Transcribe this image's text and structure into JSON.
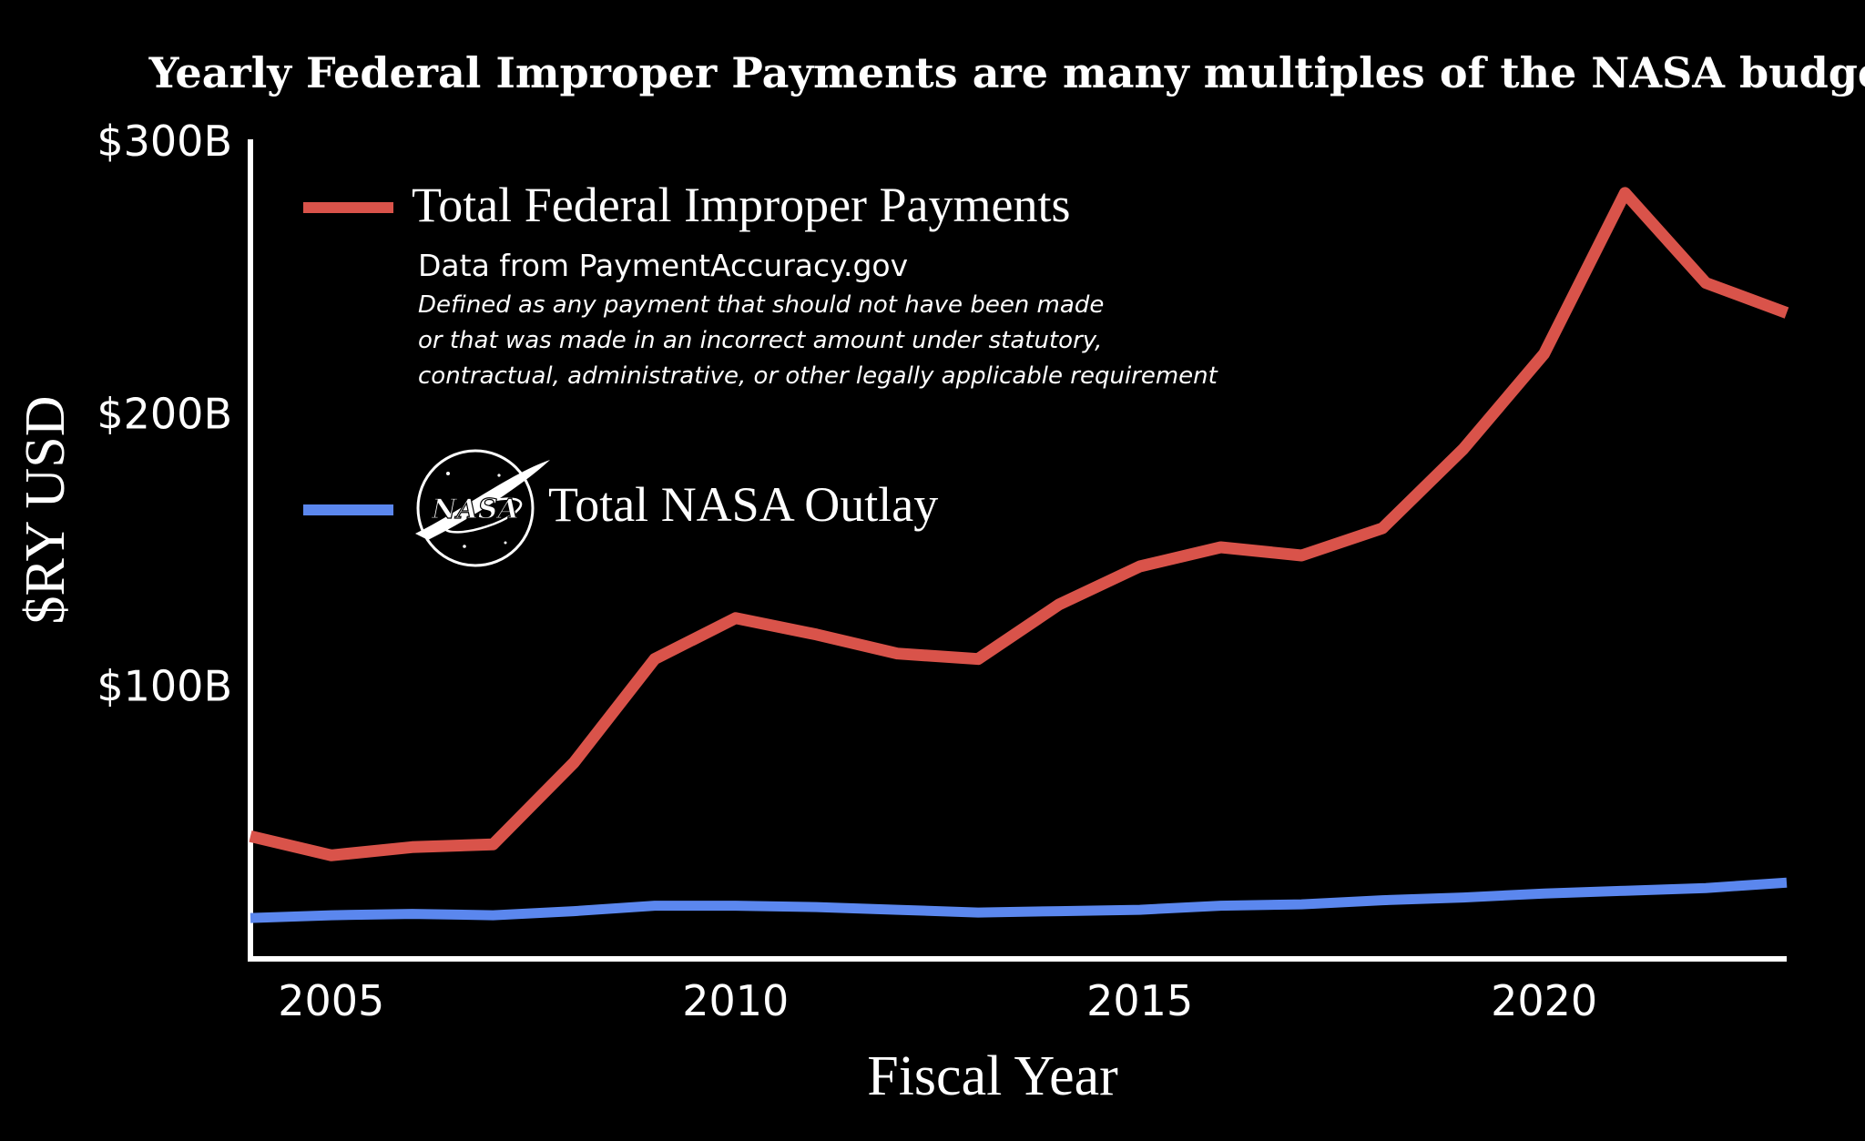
{
  "colors": {
    "background": "#000000",
    "axis": "#ffffff",
    "text": "#ffffff",
    "improper": "#d9534a",
    "nasa": "#5b87ee"
  },
  "chart_data": {
    "type": "line",
    "title": "Yearly Federal Improper Payments are many multiples of the NASA budget",
    "xlabel": "Fiscal Year",
    "ylabel": "$RY USD",
    "xlim": [
      2004,
      2023
    ],
    "ylim": [
      0,
      300
    ],
    "x_ticks": [
      {
        "value": 2005,
        "label": "2005"
      },
      {
        "value": 2010,
        "label": "2010"
      },
      {
        "value": 2015,
        "label": "2015"
      },
      {
        "value": 2020,
        "label": "2020"
      }
    ],
    "y_ticks": [
      {
        "value": 100,
        "label": "$100B"
      },
      {
        "value": 200,
        "label": "$200B"
      },
      {
        "value": 300,
        "label": "$300B"
      }
    ],
    "grid": false,
    "legend_position": "top-left",
    "x": [
      2004,
      2005,
      2006,
      2007,
      2008,
      2009,
      2010,
      2011,
      2012,
      2013,
      2014,
      2015,
      2016,
      2017,
      2018,
      2019,
      2020,
      2021,
      2022,
      2023
    ],
    "series": [
      {
        "key": "improper",
        "name": "Total Federal Improper Payments",
        "values": [
          45,
          38,
          41,
          42,
          72,
          110,
          125,
          119,
          112,
          110,
          130,
          144,
          151,
          148,
          158,
          187,
          222,
          281,
          248,
          237
        ]
      },
      {
        "key": "nasa",
        "name": "Total NASA Outlay",
        "values": [
          15,
          16,
          16.5,
          16,
          17.5,
          19.5,
          19.5,
          19,
          18,
          17,
          17.5,
          18,
          19.5,
          20,
          21.5,
          22.5,
          24,
          25,
          26,
          28
        ]
      }
    ],
    "annotations": {
      "source": "Data from PaymentAccuracy.gov",
      "definition_lines": [
        "Defined as any payment that should not have been made",
        "or that was made in an incorrect amount under statutory,",
        "contractual, administrative, or other legally applicable requirement"
      ],
      "logo_text": "NASA"
    }
  }
}
